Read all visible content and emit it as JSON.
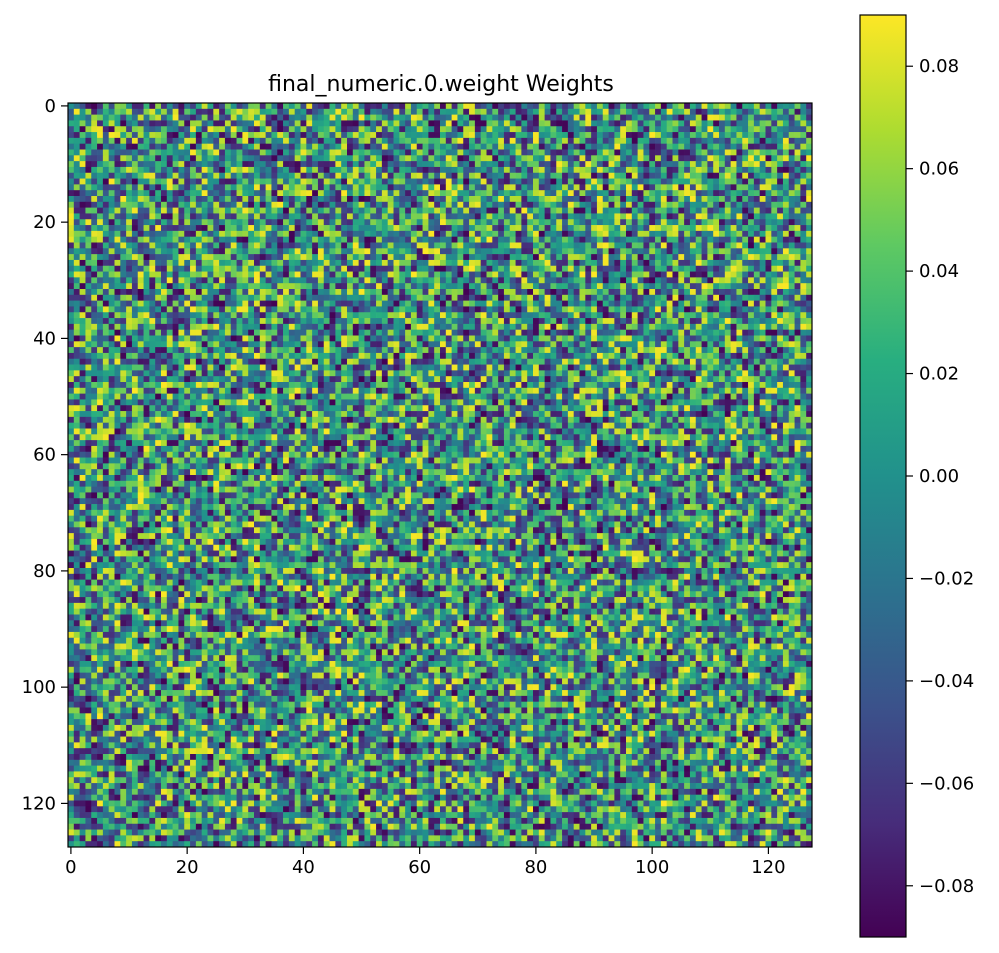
{
  "chart_data": {
    "type": "heatmap",
    "title": "final_numeric.0.weight Weights",
    "rows": 128,
    "cols": 128,
    "x_ticks": [
      0,
      20,
      40,
      60,
      80,
      100,
      120
    ],
    "y_ticks": [
      0,
      20,
      40,
      60,
      80,
      100,
      120
    ],
    "value_range": [
      -0.09,
      0.09
    ],
    "distribution": "uniform random noise",
    "colormap": "viridis",
    "colorbar": {
      "range": [
        -0.09,
        0.09
      ],
      "ticks": [
        0.08,
        0.06,
        0.04,
        0.02,
        0.0,
        -0.02,
        -0.04,
        -0.06,
        -0.08
      ],
      "tick_labels": [
        "0.08",
        "0.06",
        "0.04",
        "0.02",
        "0.00",
        "−0.02",
        "−0.04",
        "−0.06",
        "−0.08"
      ]
    }
  }
}
